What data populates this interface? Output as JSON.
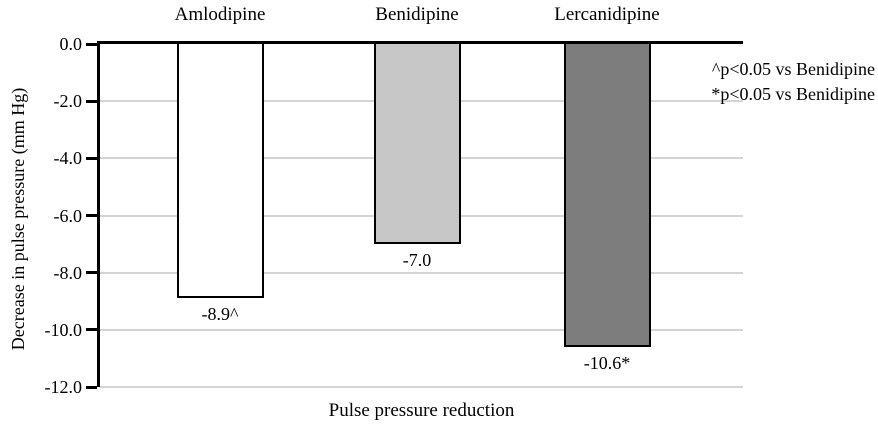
{
  "chart_data": {
    "type": "bar",
    "orientation": "vertical-down",
    "categories": [
      "Amlodipine",
      "Benidipine",
      "Lercanidipine"
    ],
    "values": [
      -8.9,
      -7.0,
      -10.6
    ],
    "value_labels": [
      "-8.9^",
      "-7.0",
      "-10.6*"
    ],
    "bar_colors": [
      "#ffffff",
      "#c7c7c7",
      "#7d7d7d"
    ],
    "bar_border_color": "#000000",
    "title": "",
    "xlabel": "Pulse pressure reduction",
    "ylabel": "Decrease in pulse pressure (mm Hg)",
    "ylim": [
      0.0,
      -12.0
    ],
    "yticks": [
      {
        "label": "0.0",
        "value": 0
      },
      {
        "label": "-2.0",
        "value": -2
      },
      {
        "label": "-4.0",
        "value": -4
      },
      {
        "label": "-6.0",
        "value": -6
      },
      {
        "label": "-8.0",
        "value": -8
      },
      {
        "label": "-10.0",
        "value": -10
      },
      {
        "label": "-12.0",
        "value": -12
      }
    ],
    "grid": "horizontal",
    "gridline_color": "#d4d4d4",
    "axis_color": "#000000",
    "background_color": "#ffffff",
    "legend_position": "none",
    "category_label_position": "top",
    "annotations": [
      "^p<0.05 vs Benidipine",
      "*p<0.05 vs Benidipine"
    ]
  }
}
